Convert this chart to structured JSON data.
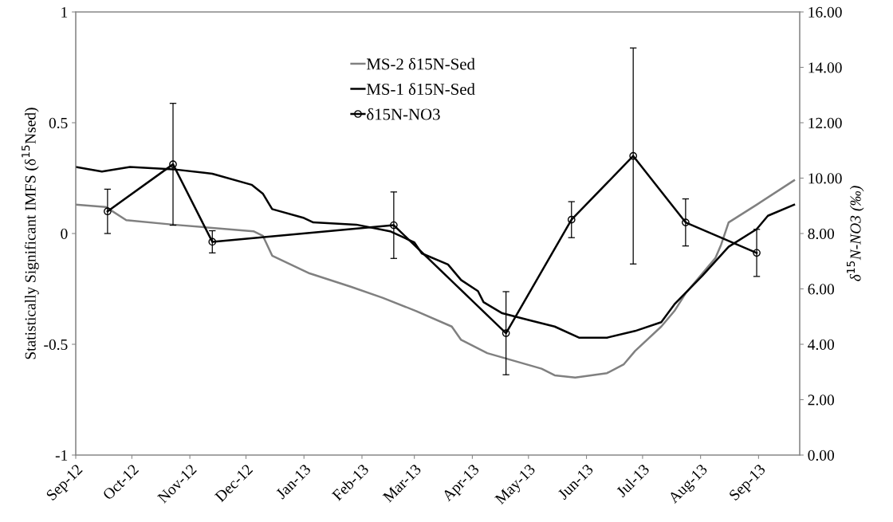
{
  "chart_data": {
    "type": "line",
    "ylabel": "Statistically Significant IMFS (δ$^{15}$Nsed)",
    "y2label": "δ$^{15}$N-NO3 (‰)",
    "xlim": [
      "2012-09-01",
      "2013-09-23"
    ],
    "xticks": [
      {
        "value": "2012-09-01",
        "label": "Sep-12"
      },
      {
        "value": "2012-10-01",
        "label": "Oct-12"
      },
      {
        "value": "2012-11-01",
        "label": "Nov-12"
      },
      {
        "value": "2012-12-01",
        "label": "Dec-12"
      },
      {
        "value": "2013-01-01",
        "label": "Jan-13"
      },
      {
        "value": "2013-02-01",
        "label": "Feb-13"
      },
      {
        "value": "2013-03-01",
        "label": "Mar-13"
      },
      {
        "value": "2013-04-01",
        "label": "Apr-13"
      },
      {
        "value": "2013-05-01",
        "label": "May-13"
      },
      {
        "value": "2013-06-01",
        "label": "Jun-13"
      },
      {
        "value": "2013-07-01",
        "label": "Jul-13"
      },
      {
        "value": "2013-08-01",
        "label": "Aug-13"
      },
      {
        "value": "2013-09-01",
        "label": "Sep-13"
      }
    ],
    "ylim": [
      -1,
      1
    ],
    "yticks": [
      -1,
      -0.5,
      0,
      0.5,
      1
    ],
    "y2lim": [
      0,
      16
    ],
    "y2ticks": [
      {
        "value": 0,
        "label": "0.00"
      },
      {
        "value": 2,
        "label": "2.00"
      },
      {
        "value": 4,
        "label": "4.00"
      },
      {
        "value": 6,
        "label": "6.00"
      },
      {
        "value": 8,
        "label": "8.00"
      },
      {
        "value": 10,
        "label": "10.00"
      },
      {
        "value": 12,
        "label": "12.00"
      },
      {
        "value": 14,
        "label": "14.00"
      },
      {
        "value": 16,
        "label": "16.00"
      }
    ],
    "grid": false,
    "legend": "top",
    "series": [
      {
        "name": "MS-2 δ15N-Sed",
        "color": "#808080",
        "marker": "none",
        "x": [
          "2012-09-01",
          "2012-09-17",
          "2012-09-28",
          "2012-10-23",
          "2012-12-05",
          "2012-12-10",
          "2012-12-15",
          "2013-01-04",
          "2013-01-26",
          "2013-02-12",
          "2013-03-02",
          "2013-03-21",
          "2013-03-26",
          "2013-04-09",
          "2013-05-08",
          "2013-05-15",
          "2013-05-26",
          "2013-06-12",
          "2013-06-21",
          "2013-06-27",
          "2013-07-11",
          "2013-07-18",
          "2013-07-24",
          "2013-08-09",
          "2013-08-12",
          "2013-08-16",
          "2013-08-31",
          "2013-09-20"
        ],
        "values": [
          0.13,
          0.12,
          0.06,
          0.04,
          0.01,
          -0.01,
          -0.1,
          -0.18,
          -0.24,
          -0.29,
          -0.35,
          -0.42,
          -0.48,
          -0.54,
          -0.61,
          -0.64,
          -0.65,
          -0.63,
          -0.59,
          -0.53,
          -0.42,
          -0.35,
          -0.27,
          -0.11,
          -0.05,
          0.05,
          0.13,
          0.24
        ]
      },
      {
        "name": "MS-1 δ15N-Sed",
        "color": "#000000",
        "marker": "none",
        "x": [
          "2012-09-01",
          "2012-09-15",
          "2012-09-30",
          "2012-10-23",
          "2012-11-13",
          "2012-12-04",
          "2012-12-10",
          "2012-12-15",
          "2013-01-01",
          "2013-01-06",
          "2013-01-29",
          "2013-02-16",
          "2013-03-01",
          "2013-03-05",
          "2013-03-19",
          "2013-03-26",
          "2013-04-04",
          "2013-04-07",
          "2013-04-17",
          "2013-05-01",
          "2013-05-15",
          "2013-05-28",
          "2013-06-12",
          "2013-06-27",
          "2013-07-11",
          "2013-07-18",
          "2013-08-02",
          "2013-08-16",
          "2013-08-31",
          "2013-09-06",
          "2013-09-20"
        ],
        "values": [
          0.3,
          0.28,
          0.3,
          0.29,
          0.27,
          0.22,
          0.18,
          0.11,
          0.07,
          0.05,
          0.04,
          0.01,
          -0.04,
          -0.09,
          -0.14,
          -0.21,
          -0.26,
          -0.31,
          -0.36,
          -0.39,
          -0.42,
          -0.47,
          -0.47,
          -0.44,
          -0.4,
          -0.32,
          -0.19,
          -0.06,
          0.02,
          0.08,
          0.13
        ]
      },
      {
        "name": "δ15N-NO3",
        "color": "#000000",
        "marker": "circle",
        "axis": "y2",
        "x": [
          "2012-09-18",
          "2012-10-23",
          "2012-11-13",
          "2013-02-18",
          "2013-04-19",
          "2013-05-24",
          "2013-06-26",
          "2013-07-24",
          "2013-08-31"
        ],
        "values": [
          8.8,
          10.5,
          7.7,
          8.3,
          4.4,
          8.5,
          10.8,
          8.4,
          7.3
        ],
        "errors": [
          0.8,
          2.2,
          0.4,
          1.2,
          1.5,
          0.65,
          3.9,
          0.85,
          0.85
        ]
      }
    ]
  }
}
